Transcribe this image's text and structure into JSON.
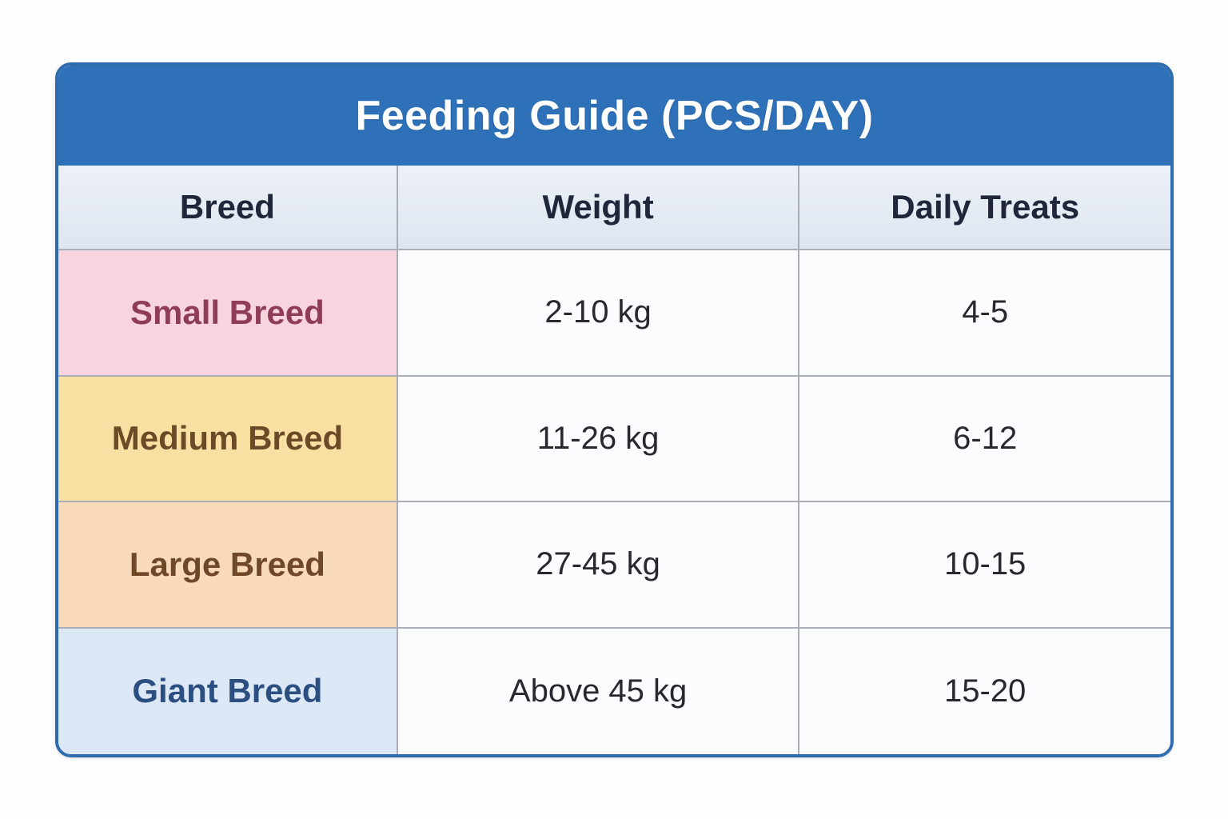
{
  "table": {
    "title": "Feeding Guide (PCS/DAY)",
    "title_bg": "#2e71b8",
    "title_color": "#ffffff",
    "border_color": "#2f6cae",
    "grid_color": "#a9aeb8",
    "header_bg": "#e4eaf3",
    "header_text_color": "#20273a",
    "value_color": "#26292e",
    "cell_bg": "#fbfcfe",
    "columns": [
      "Breed",
      "Weight",
      "Daily Treats"
    ],
    "rows": [
      {
        "breed": "Small Breed",
        "weight": "2-10 kg",
        "treats": "4-5",
        "row_bg": "#f8d5de",
        "breed_color": "#8e3c57"
      },
      {
        "breed": "Medium Breed",
        "weight": "11-26 kg",
        "treats": "6-12",
        "row_bg": "#f8e0a3",
        "breed_color": "#6b4a27"
      },
      {
        "breed": "Large Breed",
        "weight": "27-45 kg",
        "treats": "10-15",
        "row_bg": "#f8dabb",
        "breed_color": "#6f4827"
      },
      {
        "breed": "Giant Breed",
        "weight": "Above 45 kg",
        "treats": "15-20",
        "row_bg": "#dce8f6",
        "breed_color": "#2b4f80"
      }
    ]
  },
  "chart_data": {
    "type": "table",
    "title": "Feeding Guide (PCS/DAY)",
    "columns": [
      "Breed",
      "Weight",
      "Daily Treats"
    ],
    "rows": [
      [
        "Small Breed",
        "2-10 kg",
        "4-5"
      ],
      [
        "Medium Breed",
        "11-26 kg",
        "6-12"
      ],
      [
        "Large Breed",
        "27-45 kg",
        "10-15"
      ],
      [
        "Giant Breed",
        "Above 45 kg",
        "15-20"
      ]
    ],
    "layout": "title banner on top, header row, 4 color-coded data rows, all cells center-aligned"
  }
}
